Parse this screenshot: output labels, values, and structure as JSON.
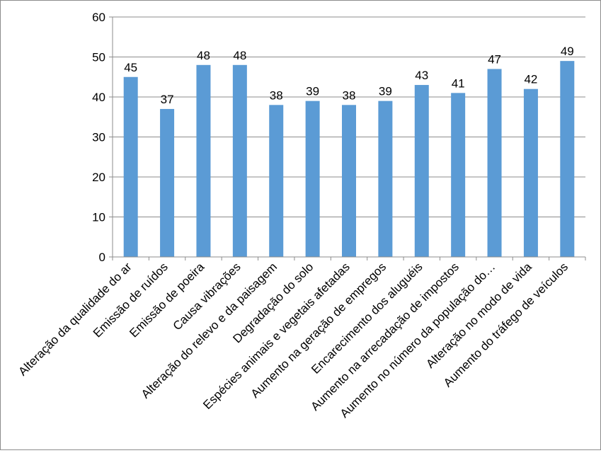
{
  "chart_data": {
    "type": "bar",
    "categories": [
      "Alteração da qualidade do ar",
      "Emissão de ruídos",
      "Emissão de poeira",
      "Causa vibrações",
      "Alteração do relevo e da paisagem",
      "Degradação do solo",
      "Espécies animais e vegetais afetadas",
      "Aumento na geração de empregos",
      "Encarecimento dos aluguéis",
      "Aumento na arrecadação de impostos",
      "Aumento no número da população do…",
      "Alteração no modo de vida",
      "Aumento do tráfego de veículos"
    ],
    "values": [
      45,
      37,
      48,
      48,
      38,
      39,
      38,
      39,
      43,
      41,
      47,
      42,
      49
    ],
    "ylim": [
      0,
      60
    ],
    "yticks": [
      0,
      10,
      20,
      30,
      40,
      50,
      60
    ],
    "grid": true,
    "legend": "none",
    "colors": {
      "bar": "#5B9BD5",
      "grid": "#8c8c8c",
      "axis": "#8c8c8c"
    }
  }
}
